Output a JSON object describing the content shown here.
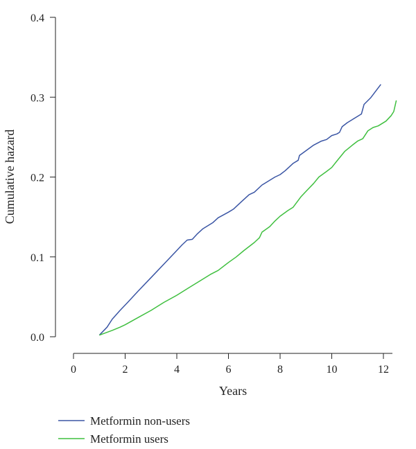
{
  "chart_data": {
    "type": "line",
    "title": "",
    "xlabel": "Years",
    "ylabel": "Cumulative hazard",
    "xlim": [
      0,
      12.5
    ],
    "ylim": [
      0,
      0.4
    ],
    "x_ticks": [
      0,
      2,
      4,
      6,
      8,
      10,
      12
    ],
    "x_tick_labels": [
      "0",
      "2",
      "4",
      "6",
      "8",
      "10",
      "12"
    ],
    "y_ticks": [
      0,
      0.1,
      0.2,
      0.3,
      0.4
    ],
    "y_tick_labels": [
      "0.0",
      "0.1",
      "0.2",
      "0.3",
      "0.4"
    ],
    "grid": false,
    "legend_position": "bottom-left",
    "series": [
      {
        "name": "Metformin non-users",
        "color": "#3a55a4",
        "points": [
          [
            1.0,
            0.002
          ],
          [
            1.3,
            0.012
          ],
          [
            1.5,
            0.022
          ],
          [
            1.8,
            0.033
          ],
          [
            2.1,
            0.043
          ],
          [
            2.5,
            0.057
          ],
          [
            3.0,
            0.074
          ],
          [
            3.5,
            0.091
          ],
          [
            4.0,
            0.108
          ],
          [
            4.2,
            0.115
          ],
          [
            4.4,
            0.121
          ],
          [
            4.6,
            0.122
          ],
          [
            4.8,
            0.129
          ],
          [
            5.0,
            0.135
          ],
          [
            5.4,
            0.143
          ],
          [
            5.6,
            0.149
          ],
          [
            6.0,
            0.156
          ],
          [
            6.2,
            0.16
          ],
          [
            6.5,
            0.169
          ],
          [
            6.8,
            0.178
          ],
          [
            7.0,
            0.181
          ],
          [
            7.3,
            0.19
          ],
          [
            7.6,
            0.196
          ],
          [
            7.8,
            0.2
          ],
          [
            8.0,
            0.203
          ],
          [
            8.2,
            0.208
          ],
          [
            8.5,
            0.217
          ],
          [
            8.7,
            0.221
          ],
          [
            8.75,
            0.227
          ],
          [
            9.0,
            0.233
          ],
          [
            9.3,
            0.24
          ],
          [
            9.6,
            0.245
          ],
          [
            9.8,
            0.247
          ],
          [
            10.0,
            0.252
          ],
          [
            10.2,
            0.254
          ],
          [
            10.3,
            0.256
          ],
          [
            10.4,
            0.263
          ],
          [
            10.6,
            0.268
          ],
          [
            10.8,
            0.272
          ],
          [
            11.0,
            0.276
          ],
          [
            11.15,
            0.279
          ],
          [
            11.25,
            0.291
          ],
          [
            11.5,
            0.299
          ],
          [
            11.9,
            0.316
          ]
        ]
      },
      {
        "name": "Metformin users",
        "color": "#3fbf3f",
        "points": [
          [
            1.0,
            0.002
          ],
          [
            1.5,
            0.008
          ],
          [
            1.8,
            0.012
          ],
          [
            2.0,
            0.015
          ],
          [
            2.5,
            0.024
          ],
          [
            3.0,
            0.033
          ],
          [
            3.5,
            0.043
          ],
          [
            4.0,
            0.052
          ],
          [
            4.5,
            0.062
          ],
          [
            5.0,
            0.072
          ],
          [
            5.3,
            0.078
          ],
          [
            5.6,
            0.083
          ],
          [
            6.0,
            0.093
          ],
          [
            6.3,
            0.1
          ],
          [
            6.6,
            0.108
          ],
          [
            7.0,
            0.118
          ],
          [
            7.2,
            0.124
          ],
          [
            7.3,
            0.131
          ],
          [
            7.6,
            0.138
          ],
          [
            7.8,
            0.145
          ],
          [
            8.0,
            0.151
          ],
          [
            8.3,
            0.158
          ],
          [
            8.5,
            0.162
          ],
          [
            8.8,
            0.175
          ],
          [
            9.0,
            0.182
          ],
          [
            9.3,
            0.192
          ],
          [
            9.5,
            0.2
          ],
          [
            9.8,
            0.207
          ],
          [
            10.0,
            0.212
          ],
          [
            10.2,
            0.22
          ],
          [
            10.5,
            0.232
          ],
          [
            10.8,
            0.24
          ],
          [
            11.0,
            0.245
          ],
          [
            11.2,
            0.248
          ],
          [
            11.4,
            0.258
          ],
          [
            11.6,
            0.262
          ],
          [
            11.8,
            0.264
          ],
          [
            12.1,
            0.27
          ],
          [
            12.3,
            0.277
          ],
          [
            12.4,
            0.282
          ],
          [
            12.5,
            0.296
          ]
        ]
      }
    ]
  }
}
